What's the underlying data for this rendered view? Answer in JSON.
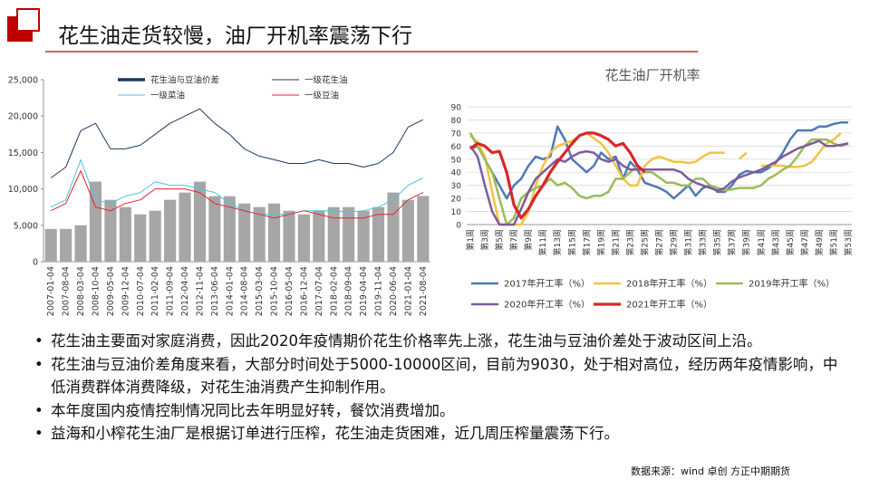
{
  "title": "花生油走货较慢，油厂开机率震荡下行",
  "chart_data": [
    {
      "type": "line",
      "categories": [
        "2007-01-04",
        "2007-08-04",
        "2008-03-04",
        "2008-10-04",
        "2009-05-04",
        "2009-12-04",
        "2010-07-04",
        "2011-02-04",
        "2011-09-04",
        "2012-04-04",
        "2012-11-04",
        "2013-06-04",
        "2014-01-04",
        "2014-08-04",
        "2015-03-04",
        "2015-10-04",
        "2016-05-04",
        "2016-12-04",
        "2017-07-04",
        "2018-02-04",
        "2018-09-04",
        "2019-04-04",
        "2019-11-04",
        "2020-06-04",
        "2021-01-04",
        "2021-08-04"
      ],
      "series": [
        {
          "name": "花生油与豆油价差",
          "type": "bar",
          "color": "#a6a6a6",
          "legend_color": "#1f3864",
          "values": [
            4500,
            4500,
            5000,
            11000,
            8500,
            7500,
            6500,
            7000,
            8500,
            9500,
            11000,
            9000,
            9000,
            8000,
            7500,
            8000,
            7000,
            6500,
            7000,
            7500,
            7500,
            7000,
            7500,
            9500,
            8500,
            9030
          ]
        },
        {
          "name": "一级花生油",
          "color": "#1f3864",
          "values": [
            11500,
            13000,
            18000,
            19000,
            15500,
            15500,
            16000,
            17500,
            19000,
            20000,
            21000,
            19000,
            17500,
            15500,
            14500,
            14000,
            13500,
            13500,
            14000,
            13500,
            13500,
            13000,
            13500,
            15000,
            18500,
            19500
          ]
        },
        {
          "name": "一级菜油",
          "color": "#4dc3e0",
          "values": [
            7500,
            8500,
            14000,
            8500,
            8000,
            9000,
            9500,
            11000,
            10500,
            10500,
            10000,
            9500,
            8000,
            7000,
            6500,
            6500,
            6500,
            7000,
            7000,
            7000,
            6800,
            7000,
            7500,
            8500,
            10500,
            11500
          ]
        },
        {
          "name": "一级豆油",
          "color": "#e0252a",
          "values": [
            7000,
            8000,
            12500,
            7500,
            7000,
            8000,
            8500,
            10000,
            10000,
            10000,
            9500,
            8000,
            7500,
            7000,
            6500,
            6000,
            6500,
            7000,
            6500,
            6000,
            6000,
            6000,
            6500,
            6500,
            8500,
            9500
          ]
        }
      ],
      "ylim": [
        0,
        25000
      ],
      "yticks": [
        0,
        {
          "value": 5000,
          "label": "5,000"
        },
        {
          "value": 10000,
          "label": "10,000"
        },
        {
          "value": 15000,
          "label": "15,000"
        },
        {
          "value": 20000,
          "label": "20,000"
        },
        {
          "value": 25000,
          "label": "25,000"
        }
      ],
      "grid": false
    },
    {
      "type": "line",
      "title": "花生油厂开机率",
      "categories": [
        "第1周",
        null,
        "第3周",
        null,
        "第5周",
        null,
        "第7周",
        null,
        "第9周",
        null,
        "第11周",
        null,
        "第13周",
        null,
        "第15周",
        null,
        "第17周",
        null,
        "第19周",
        null,
        "第21周",
        null,
        "第23周",
        null,
        "第25周",
        null,
        "第27周",
        null,
        "第29周",
        null,
        "第31周",
        null,
        "第33周",
        null,
        "第35周",
        null,
        "第37周",
        null,
        "第39周",
        null,
        "第41周",
        null,
        "第43周",
        null,
        "第45周",
        null,
        "第47周",
        null,
        "第49周",
        null,
        "第51周",
        null,
        "第53周"
      ],
      "series": [
        {
          "name": "2017年开工率（%）",
          "color": "#4e79b5",
          "values": [
            58,
            60,
            50,
            40,
            30,
            20,
            30,
            35,
            45,
            52,
            50,
            52,
            75,
            65,
            50,
            45,
            40,
            45,
            55,
            50,
            52,
            35,
            48,
            42,
            32,
            30,
            28,
            25,
            20,
            25,
            30,
            22,
            28,
            30,
            25,
            25,
            30,
            38,
            41,
            40,
            40,
            43,
            47,
            55,
            65,
            72,
            72,
            72,
            75,
            75,
            77,
            78,
            78
          ]
        },
        {
          "name": "2018年开工率（%）",
          "color": "#f5c242",
          "values": [
            68,
            63,
            52,
            25,
            0,
            0,
            0,
            0,
            10,
            30,
            45,
            55,
            60,
            62,
            64,
            68,
            70,
            66,
            62,
            55,
            45,
            35,
            30,
            30,
            45,
            50,
            52,
            50,
            48,
            48,
            47,
            48,
            52,
            55,
            55,
            55,
            null,
            50,
            55,
            null,
            45,
            45,
            45,
            45,
            44,
            44,
            45,
            48,
            55,
            62,
            65,
            70,
            null
          ]
        },
        {
          "name": "2019年开工率（%）",
          "color": "#9bbb59",
          "values": [
            70,
            60,
            50,
            40,
            20,
            0,
            5,
            20,
            25,
            28,
            30,
            35,
            30,
            32,
            28,
            22,
            20,
            22,
            22,
            25,
            35,
            35,
            40,
            45,
            40,
            40,
            36,
            32,
            32,
            30,
            30,
            35,
            35,
            30,
            28,
            26,
            27,
            28,
            28,
            28,
            30,
            35,
            38,
            42,
            45,
            52,
            60,
            65,
            65,
            65,
            62,
            60,
            62
          ]
        },
        {
          "name": "2020年开工率（%）",
          "color": "#7d5c9e",
          "values": [
            60,
            52,
            30,
            10,
            0,
            0,
            0,
            12,
            25,
            35,
            40,
            45,
            50,
            48,
            52,
            55,
            56,
            55,
            50,
            48,
            50,
            45,
            42,
            42,
            42,
            42,
            42,
            42,
            42,
            40,
            35,
            32,
            30,
            28,
            26,
            28,
            33,
            36,
            38,
            40,
            42,
            45,
            48,
            52,
            55,
            58,
            60,
            62,
            64,
            60,
            60,
            61,
            62
          ]
        },
        {
          "name": "2021年开工率（%）",
          "color": "#d9262c",
          "values": [
            58,
            62,
            60,
            55,
            56,
            40,
            15,
            5,
            12,
            22,
            30,
            40,
            48,
            55,
            62,
            68,
            70,
            70,
            68,
            65,
            60,
            62,
            55,
            45,
            40,
            null,
            null,
            null,
            null,
            null,
            null,
            null,
            null,
            null,
            null,
            null,
            null,
            null,
            null,
            null,
            null,
            null,
            null,
            null,
            null,
            null,
            null,
            null,
            null,
            null,
            null,
            null,
            null
          ]
        }
      ],
      "ylim": [
        0,
        90
      ],
      "yticks": [
        0,
        10,
        20,
        30,
        40,
        50,
        60,
        70,
        80,
        90
      ],
      "grid": true
    }
  ],
  "bullets": [
    "花生油主要面对家庭消费，因此2020年疫情期价花生价格率先上涨，花生油与豆油价差处于波动区间上沿。",
    "花生油与豆油价差角度来看，大部分时间处于5000-10000区间，目前为9030，处于相对高位，经历两年疫情影响，中低消费群体消费降级，对花生油消费产生抑制作用。",
    "本年度国内疫情控制情况同比去年明显好转，餐饮消费增加。",
    "益海和小榨花生油厂是根据订单进行压榨，花生油走货困难，近几周压榨量震荡下行。"
  ],
  "source": "数据来源：wind 卓创 方正中期期货"
}
